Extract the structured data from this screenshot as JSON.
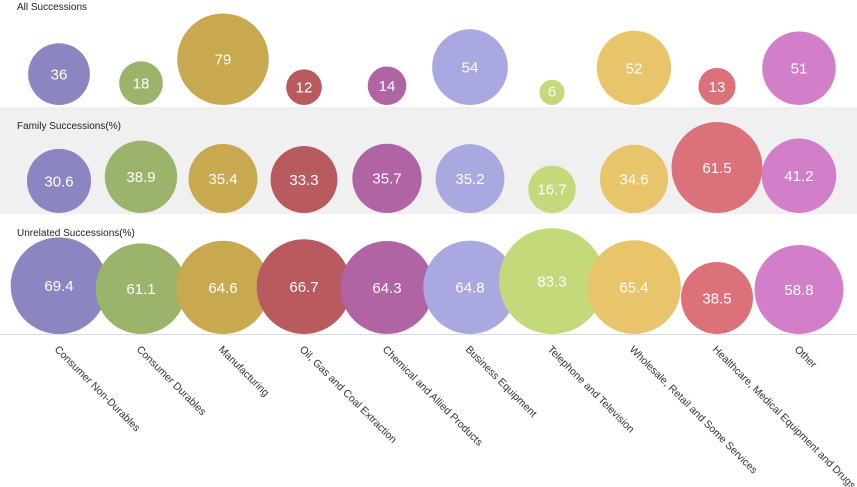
{
  "chart_data": {
    "type": "bubble",
    "categories": [
      "Consumer Non-Durables",
      "Consumer Durables",
      "Manufacturing",
      "Oil, Gas and Coal Extraction",
      "Chemical and Allied Products",
      "Business Equipment",
      "Telephone and Television",
      "Wholesale, Retail and Some Services",
      "Healthcare, Medical Equipment and Drugs",
      "Other"
    ],
    "colors": [
      "#8b85c1",
      "#9bb36b",
      "#c9a94f",
      "#b95a5e",
      "#b064a4",
      "#aaa8e0",
      "#c3d97a",
      "#e8c56a",
      "#dc7179",
      "#d27ec9"
    ],
    "series": [
      {
        "name": "All Successions",
        "values": [
          36,
          18,
          79,
          12,
          14,
          54,
          6,
          52,
          13,
          51
        ]
      },
      {
        "name": "Family Successions(%)",
        "values": [
          30.6,
          38.9,
          35.4,
          33.3,
          35.7,
          35.2,
          16.7,
          34.6,
          61.5,
          41.2
        ]
      },
      {
        "name": "Unrelated Successions(%)",
        "values": [
          69.4,
          61.1,
          64.6,
          66.7,
          64.3,
          64.8,
          83.3,
          65.4,
          38.5,
          58.8
        ]
      }
    ],
    "band_backgrounds": [
      "#ffffff",
      "#f0f0f0",
      "#ffffff"
    ]
  }
}
